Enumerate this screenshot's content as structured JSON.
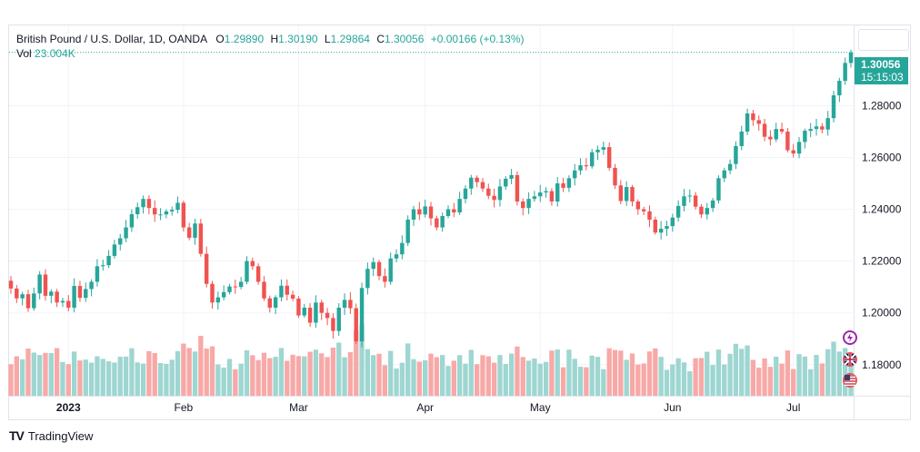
{
  "legend": {
    "symbol": "British Pound / U.S. Dollar, 1D, OANDA",
    "open_label": "O",
    "open": "1.29890",
    "high_label": "H",
    "high": "1.30190",
    "low_label": "L",
    "low": "1.29864",
    "close_label": "C",
    "close": "1.30056",
    "change": "+0.00166 (+0.13%)",
    "vol_label": "Vol",
    "vol": "23.004K"
  },
  "price_tag": {
    "price": "1.30056",
    "countdown": "15:15:03"
  },
  "brand": {
    "name": "TradingView",
    "logo": "TV"
  },
  "colors": {
    "up": "#26a69a",
    "down": "#ef5350",
    "up_vol": "#9ed6d1",
    "down_vol": "#f7a9a7",
    "grid": "#f0f3fa"
  },
  "icons": [
    "lightning-icon",
    "uk-flag-icon",
    "us-flag-icon"
  ],
  "chart_data": {
    "type": "candlestick",
    "title": "British Pound / U.S. Dollar, 1D, OANDA",
    "y_ticks": [
      "1.28000",
      "1.26000",
      "1.24000",
      "1.22000",
      "1.20000",
      "1.18000"
    ],
    "x_ticks": [
      "2023",
      "Feb",
      "Mar",
      "Apr",
      "May",
      "Jun",
      "Jul"
    ],
    "ylim": [
      1.168,
      1.311
    ],
    "last_close": 1.30056,
    "closes": [
      1.2094,
      1.2056,
      1.2072,
      1.2018,
      1.2075,
      1.2148,
      1.2066,
      1.2082,
      1.204,
      1.2046,
      1.202,
      1.2104,
      1.2058,
      1.2092,
      1.212,
      1.218,
      1.2184,
      1.222,
      1.2264,
      1.2288,
      1.233,
      1.2381,
      1.2408,
      1.244,
      1.2405,
      1.238,
      1.238,
      1.2392,
      1.2398,
      1.2425,
      1.233,
      1.229,
      1.2345,
      1.2228,
      1.2112,
      1.204,
      1.206,
      1.208,
      1.2102,
      1.21,
      1.212,
      1.22,
      1.218,
      1.212,
      1.2056,
      1.202,
      1.206,
      1.2105,
      1.207,
      1.2055,
      1.199,
      1.202,
      1.1962,
      1.204,
      1.2,
      1.198,
      1.193,
      1.202,
      1.205,
      1.2018,
      1.189,
      1.2096,
      1.217,
      1.2196,
      1.2142,
      1.212,
      1.221,
      1.2226,
      1.227,
      1.236,
      1.24,
      1.238,
      1.2411,
      1.2365,
      1.233,
      1.2374,
      1.24,
      1.2388,
      1.244,
      1.248,
      1.2522,
      1.2505,
      1.248,
      1.2452,
      1.2436,
      1.2488,
      1.2518,
      1.2532,
      1.243,
      1.2405,
      1.244,
      1.245,
      1.2465,
      1.247,
      1.243,
      1.25,
      1.2483,
      1.252,
      1.255,
      1.257,
      1.2566,
      1.262,
      1.263,
      1.264,
      1.256,
      1.2492,
      1.2432,
      1.2486,
      1.243,
      1.24,
      1.2392,
      1.236,
      1.231,
      1.2325,
      1.2335,
      1.2368,
      1.2413,
      1.245,
      1.2453,
      1.241,
      1.238,
      1.2405,
      1.2434,
      1.252,
      1.255,
      1.2575,
      1.2644,
      1.27,
      1.277,
      1.2744,
      1.273,
      1.268,
      1.267,
      1.271,
      1.27,
      1.2628,
      1.2615,
      1.266,
      1.2703,
      1.271,
      1.272,
      1.2708,
      1.2752,
      1.284,
      1.2896,
      1.2965,
      1.30056
    ]
  }
}
